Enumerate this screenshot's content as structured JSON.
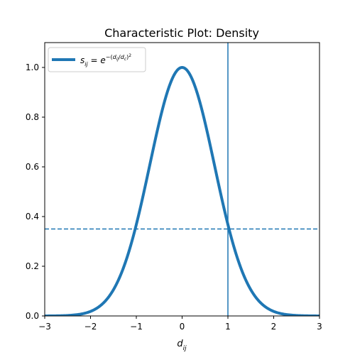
{
  "chart_data": {
    "type": "line",
    "title": "Characteristic Plot: Density",
    "xlabel_main": "d",
    "xlabel_sub": "ij",
    "ylabel": "",
    "xlim": [
      -3,
      3
    ],
    "ylim": [
      0,
      1.1
    ],
    "xticks": [
      -3,
      -2,
      -1,
      0,
      1,
      2,
      3
    ],
    "xtick_labels": [
      "−3",
      "−2",
      "−1",
      "0",
      "1",
      "2",
      "3"
    ],
    "yticks": [
      0.0,
      0.2,
      0.4,
      0.6,
      0.8,
      1.0
    ],
    "ytick_labels": [
      "0.0",
      "0.2",
      "0.4",
      "0.6",
      "0.8",
      "1.0"
    ],
    "grid": false,
    "legend_position": "top-left",
    "series": [
      {
        "formula": "s_ij = e^{-(d_ij/d_c)^2}",
        "color": "#1f77b4",
        "dc": 1.0,
        "x": [
          -3.0,
          -2.8,
          -2.6,
          -2.4,
          -2.2,
          -2.0,
          -1.8,
          -1.6,
          -1.4,
          -1.2,
          -1.0,
          -0.8,
          -0.6,
          -0.4,
          -0.2,
          0.0,
          0.2,
          0.4,
          0.6,
          0.8,
          1.0,
          1.2,
          1.4,
          1.6,
          1.8,
          2.0,
          2.2,
          2.4,
          2.6,
          2.8,
          3.0
        ],
        "y": [
          0.0001,
          0.0004,
          0.0012,
          0.0032,
          0.0079,
          0.0183,
          0.0392,
          0.0773,
          0.1409,
          0.2369,
          0.3679,
          0.5273,
          0.6977,
          0.8521,
          0.9608,
          1.0,
          0.9608,
          0.8521,
          0.6977,
          0.5273,
          0.3679,
          0.2369,
          0.1409,
          0.0773,
          0.0392,
          0.0183,
          0.0079,
          0.0032,
          0.0012,
          0.0004,
          0.0001
        ]
      }
    ],
    "reference_lines": {
      "vertical_x": 1.0,
      "vertical_color": "#1f77b4",
      "horizontal_y": 0.35,
      "horizontal_color": "#1f77b4",
      "horizontal_style": "dashed"
    }
  }
}
